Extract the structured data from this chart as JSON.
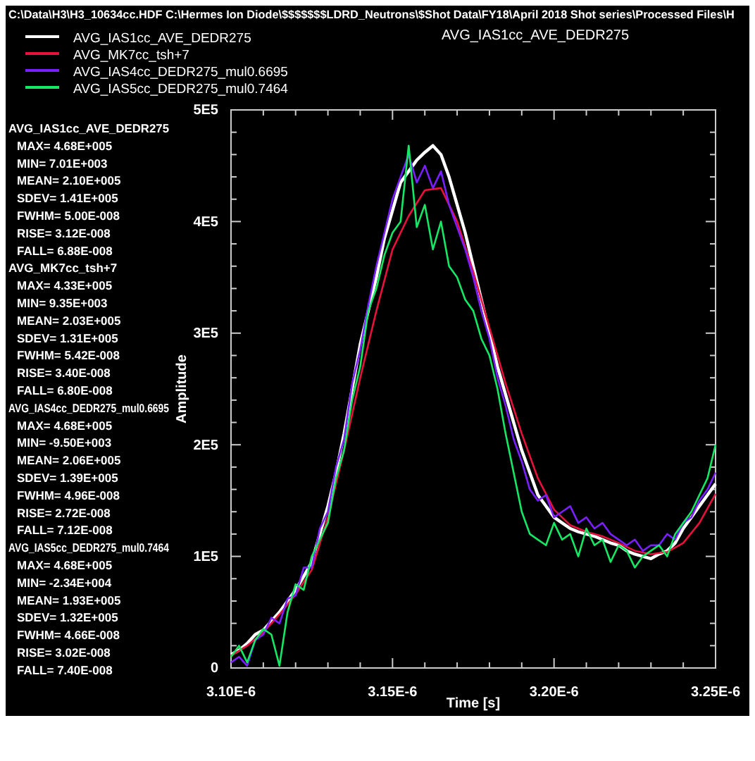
{
  "chart_data": {
    "type": "line",
    "title": "AVG_IAS1cc_AVE_DEDR275",
    "xlabel": "Time [s]",
    "ylabel": "Amplitude",
    "xlim": [
      3.1e-06,
      3.25e-06
    ],
    "ylim": [
      0,
      500000
    ],
    "xticks": [
      {
        "value": 3.1e-06,
        "label": "3.10E-6"
      },
      {
        "value": 3.11e-06,
        "label": null
      },
      {
        "value": 3.12e-06,
        "label": null
      },
      {
        "value": 3.13e-06,
        "label": null
      },
      {
        "value": 3.14e-06,
        "label": null
      },
      {
        "value": 3.15e-06,
        "label": "3.15E-6"
      },
      {
        "value": 3.16e-06,
        "label": null
      },
      {
        "value": 3.17e-06,
        "label": null
      },
      {
        "value": 3.18e-06,
        "label": null
      },
      {
        "value": 3.19e-06,
        "label": null
      },
      {
        "value": 3.2e-06,
        "label": "3.20E-6"
      },
      {
        "value": 3.21e-06,
        "label": null
      },
      {
        "value": 3.22e-06,
        "label": null
      },
      {
        "value": 3.23e-06,
        "label": null
      },
      {
        "value": 3.24e-06,
        "label": null
      },
      {
        "value": 3.25e-06,
        "label": "3.25E-6"
      }
    ],
    "yticks": [
      0,
      {
        "value": 20000,
        "label": null
      },
      {
        "value": 40000,
        "label": null
      },
      {
        "value": 60000,
        "label": null
      },
      {
        "value": 80000,
        "label": null
      },
      {
        "value": 100000,
        "label": "1E5"
      },
      {
        "value": 120000,
        "label": null
      },
      {
        "value": 140000,
        "label": null
      },
      {
        "value": 160000,
        "label": null
      },
      {
        "value": 180000,
        "label": null
      },
      {
        "value": 200000,
        "label": "2E5"
      },
      {
        "value": 220000,
        "label": null
      },
      {
        "value": 240000,
        "label": null
      },
      {
        "value": 260000,
        "label": null
      },
      {
        "value": 280000,
        "label": null
      },
      {
        "value": 300000,
        "label": "3E5"
      },
      {
        "value": 320000,
        "label": null
      },
      {
        "value": 340000,
        "label": null
      },
      {
        "value": 360000,
        "label": null
      },
      {
        "value": 380000,
        "label": null
      },
      {
        "value": 400000,
        "label": "4E5"
      },
      {
        "value": 420000,
        "label": null
      },
      {
        "value": 440000,
        "label": null
      },
      {
        "value": 460000,
        "label": null
      },
      {
        "value": 480000,
        "label": null
      },
      {
        "value": 500000,
        "label": "5E5"
      }
    ],
    "grid": false,
    "legend": "top left",
    "marker": "none",
    "line_style": "solid",
    "annotations": [
      "C:\\Data\\H3\\H3_10634cc.HDF   C:\\Hermes Ion Diode\\$$$$$$$LDRD_Neutrons\\$Shot Data\\FY18\\April 2018 Shot series\\Processed Files\\H",
      "AVG_IAS1cc_AVE_DEDR275",
      "MAX= 4.68E+005",
      "MIN= 7.01E+003",
      "MEAN= 2.10E+005",
      "SDEV= 1.41E+005",
      "FWHM= 5.00E-008",
      "RISE= 3.12E-008",
      "FALL= 6.88E-008",
      "AVG_MK7cc_tsh+7",
      "MAX= 4.33E+005",
      "MIN= 9.35E+003",
      "MEAN= 2.03E+005",
      "SDEV= 1.31E+005",
      "FWHM= 5.42E-008",
      "RISE= 3.40E-008",
      "FALL= 6.80E-008",
      "AVG_IAS4cc_DEDR275_mul0.6695",
      "MAX= 4.68E+005",
      "MIN= -9.50E+003",
      "MEAN= 2.06E+005",
      "SDEV= 1.39E+005",
      "FWHM= 4.96E-008",
      "RISE= 2.72E-008",
      "FALL= 7.12E-008",
      "AVG_IAS5cc_DEDR275_mul0.7464",
      "MAX= 4.68E+005",
      "MIN= -2.34E+004",
      "MEAN= 1.93E+005",
      "SDEV= 1.32E+005",
      "FWHM= 4.66E-008",
      "RISE= 3.02E-008",
      "FALL= 7.40E-008"
    ],
    "series": [
      {
        "name": "AVG_IAS1cc_AVE_DEDR275",
        "color": "#ffffff",
        "x": [
          3.1e-06,
          3.1025e-06,
          3.105e-06,
          3.1075e-06,
          3.11e-06,
          3.1125e-06,
          3.115e-06,
          3.1175e-06,
          3.12e-06,
          3.1225e-06,
          3.125e-06,
          3.1275e-06,
          3.13e-06,
          3.1325e-06,
          3.135e-06,
          3.1375e-06,
          3.14e-06,
          3.1425e-06,
          3.145e-06,
          3.1475e-06,
          3.15e-06,
          3.1525e-06,
          3.155e-06,
          3.1575e-06,
          3.16e-06,
          3.1625e-06,
          3.165e-06,
          3.1675e-06,
          3.17e-06,
          3.1725e-06,
          3.175e-06,
          3.1775e-06,
          3.18e-06,
          3.1825e-06,
          3.185e-06,
          3.1875e-06,
          3.19e-06,
          3.1925e-06,
          3.195e-06,
          3.1975e-06,
          3.2e-06,
          3.2025e-06,
          3.205e-06,
          3.2075e-06,
          3.21e-06,
          3.2125e-06,
          3.215e-06,
          3.2175e-06,
          3.22e-06,
          3.2225e-06,
          3.225e-06,
          3.2275e-06,
          3.23e-06,
          3.2325e-06,
          3.235e-06,
          3.2375e-06,
          3.24e-06,
          3.2425e-06,
          3.245e-06,
          3.2475e-06,
          3.25e-06
        ],
        "values": [
          12000,
          16000,
          22000,
          30000,
          34000,
          42000,
          50000,
          60000,
          70000,
          82000,
          95000,
          120000,
          145000,
          175000,
          210000,
          250000,
          290000,
          320000,
          350000,
          385000,
          410000,
          435000,
          445000,
          455000,
          462000,
          468000,
          460000,
          440000,
          415000,
          390000,
          360000,
          330000,
          300000,
          270000,
          245000,
          220000,
          195000,
          175000,
          155000,
          145000,
          135000,
          130000,
          125000,
          122000,
          120000,
          118000,
          115000,
          112000,
          110000,
          105000,
          102000,
          100000,
          98000,
          102000,
          105000,
          112000,
          125000,
          135000,
          145000,
          155000,
          165000
        ]
      },
      {
        "name": "AVG_MK7cc_tsh+7",
        "color": "#e8103c",
        "x": [
          3.1e-06,
          3.105e-06,
          3.11e-06,
          3.115e-06,
          3.12e-06,
          3.125e-06,
          3.13e-06,
          3.135e-06,
          3.14e-06,
          3.145e-06,
          3.15e-06,
          3.155e-06,
          3.16e-06,
          3.165e-06,
          3.17e-06,
          3.175e-06,
          3.18e-06,
          3.185e-06,
          3.19e-06,
          3.195e-06,
          3.2e-06,
          3.205e-06,
          3.21e-06,
          3.215e-06,
          3.22e-06,
          3.225e-06,
          3.23e-06,
          3.235e-06,
          3.24e-06,
          3.245e-06,
          3.25e-06
        ],
        "values": [
          11000,
          20000,
          32000,
          48000,
          66000,
          88000,
          135000,
          195000,
          260000,
          320000,
          375000,
          405000,
          428000,
          430000,
          400000,
          355000,
          305000,
          255000,
          210000,
          170000,
          142000,
          128000,
          122000,
          118000,
          112000,
          105000,
          102000,
          104000,
          112000,
          130000,
          156000
        ]
      },
      {
        "name": "AVG_IAS4cc_DEDR275_mul0.6695",
        "color": "#7a1fff",
        "x": [
          3.1e-06,
          3.1025e-06,
          3.105e-06,
          3.1075e-06,
          3.11e-06,
          3.1125e-06,
          3.115e-06,
          3.1175e-06,
          3.12e-06,
          3.1225e-06,
          3.125e-06,
          3.1275e-06,
          3.13e-06,
          3.1325e-06,
          3.135e-06,
          3.1375e-06,
          3.14e-06,
          3.1425e-06,
          3.145e-06,
          3.1475e-06,
          3.15e-06,
          3.1525e-06,
          3.155e-06,
          3.1575e-06,
          3.16e-06,
          3.1625e-06,
          3.165e-06,
          3.1675e-06,
          3.17e-06,
          3.1725e-06,
          3.175e-06,
          3.1775e-06,
          3.18e-06,
          3.1825e-06,
          3.185e-06,
          3.1875e-06,
          3.19e-06,
          3.1925e-06,
          3.195e-06,
          3.1975e-06,
          3.2e-06,
          3.2025e-06,
          3.205e-06,
          3.2075e-06,
          3.21e-06,
          3.2125e-06,
          3.215e-06,
          3.2175e-06,
          3.22e-06,
          3.2225e-06,
          3.225e-06,
          3.2275e-06,
          3.23e-06,
          3.2325e-06,
          3.235e-06,
          3.2375e-06,
          3.24e-06,
          3.2425e-06,
          3.245e-06,
          3.2475e-06,
          3.25e-06
        ],
        "values": [
          5000,
          10000,
          2000,
          25000,
          30000,
          45000,
          40000,
          62000,
          65000,
          90000,
          90000,
          125000,
          140000,
          180000,
          205000,
          255000,
          285000,
          325000,
          360000,
          390000,
          420000,
          440000,
          460000,
          435000,
          450000,
          430000,
          445000,
          415000,
          395000,
          375000,
          350000,
          320000,
          295000,
          260000,
          235000,
          205000,
          185000,
          160000,
          150000,
          155000,
          135000,
          140000,
          145000,
          130000,
          135000,
          125000,
          130000,
          120000,
          115000,
          110000,
          115000,
          105000,
          110000,
          110000,
          120000,
          115000,
          130000,
          135000,
          150000,
          160000,
          175000
        ]
      },
      {
        "name": "AVG_IAS5cc_DEDR275_mul0.7464",
        "color": "#14e864",
        "x": [
          3.1e-06,
          3.1025e-06,
          3.105e-06,
          3.1075e-06,
          3.11e-06,
          3.1125e-06,
          3.115e-06,
          3.1175e-06,
          3.12e-06,
          3.1225e-06,
          3.125e-06,
          3.1275e-06,
          3.13e-06,
          3.1325e-06,
          3.135e-06,
          3.1375e-06,
          3.14e-06,
          3.1425e-06,
          3.145e-06,
          3.1475e-06,
          3.15e-06,
          3.1525e-06,
          3.155e-06,
          3.1575e-06,
          3.16e-06,
          3.1625e-06,
          3.165e-06,
          3.1675e-06,
          3.17e-06,
          3.1725e-06,
          3.175e-06,
          3.1775e-06,
          3.18e-06,
          3.1825e-06,
          3.185e-06,
          3.1875e-06,
          3.19e-06,
          3.1925e-06,
          3.195e-06,
          3.1975e-06,
          3.2e-06,
          3.2025e-06,
          3.205e-06,
          3.2075e-06,
          3.21e-06,
          3.2125e-06,
          3.215e-06,
          3.2175e-06,
          3.22e-06,
          3.2225e-06,
          3.225e-06,
          3.2275e-06,
          3.23e-06,
          3.2325e-06,
          3.235e-06,
          3.2375e-06,
          3.24e-06,
          3.2425e-06,
          3.245e-06,
          3.2475e-06,
          3.25e-06
        ],
        "values": [
          10000,
          20000,
          5000,
          25000,
          35000,
          30000,
          2000,
          50000,
          75000,
          70000,
          100000,
          115000,
          130000,
          170000,
          195000,
          240000,
          270000,
          320000,
          340000,
          370000,
          390000,
          400000,
          468000,
          395000,
          415000,
          375000,
          400000,
          360000,
          350000,
          330000,
          320000,
          295000,
          280000,
          250000,
          210000,
          175000,
          140000,
          120000,
          115000,
          110000,
          130000,
          115000,
          120000,
          100000,
          125000,
          110000,
          115000,
          95000,
          110000,
          105000,
          90000,
          100000,
          105000,
          110000,
          100000,
          120000,
          130000,
          140000,
          155000,
          170000,
          200000
        ]
      }
    ]
  }
}
